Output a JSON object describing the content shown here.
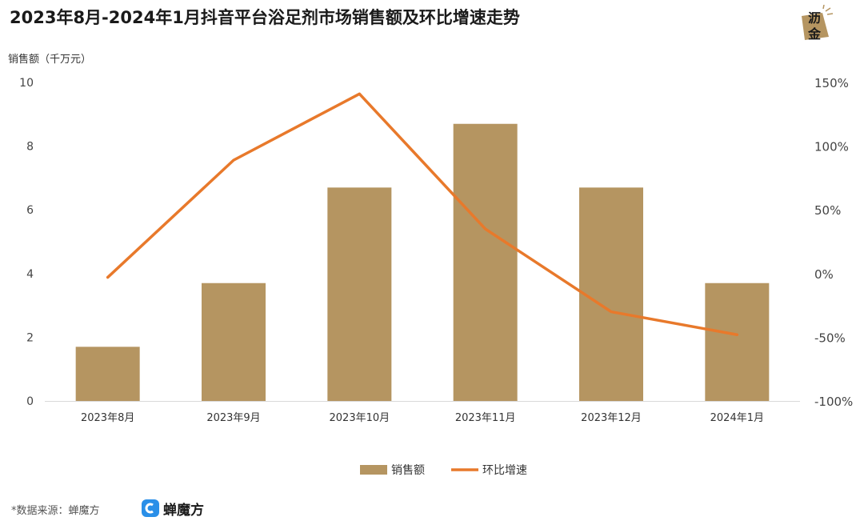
{
  "title": "2023年8月-2024年1月抖音平台浴足剂市场销售额及环比增速走势",
  "logo_text_1": "沥",
  "logo_text_2": "金",
  "source": "*数据来源：蝉魔方",
  "brand_name": "蝉魔方",
  "colors": {
    "bar": "#b59561",
    "line": "#e8792b",
    "brand": "#2a8fe8",
    "logo": "#b59561"
  },
  "chart_data": {
    "type": "bar",
    "ylabel": "销售额（千万元）",
    "categories": [
      "2023年8月",
      "2023年9月",
      "2023年10月",
      "2023年11月",
      "2023年12月",
      "2024年1月"
    ],
    "series": [
      {
        "name": "销售额",
        "type": "bar",
        "axis": "left",
        "values": [
          1.7,
          3.7,
          6.7,
          8.7,
          6.7,
          3.7
        ]
      },
      {
        "name": "环比增速",
        "type": "line",
        "axis": "right",
        "values": [
          -3,
          89,
          141,
          35,
          -30,
          -48
        ]
      }
    ],
    "left_axis": {
      "min": 0,
      "max": 10,
      "ticks": [
        0,
        2,
        4,
        6,
        8,
        10
      ],
      "tick_labels": [
        "0",
        "2",
        "4",
        "6",
        "8",
        "10"
      ]
    },
    "right_axis": {
      "min": -100,
      "max": 150,
      "ticks": [
        -100,
        -50,
        0,
        50,
        100,
        150
      ],
      "tick_labels": [
        "-100%",
        "-50%",
        "0%",
        "50%",
        "100%",
        "150%"
      ]
    },
    "legend_position": "bottom-center",
    "grid": false
  }
}
